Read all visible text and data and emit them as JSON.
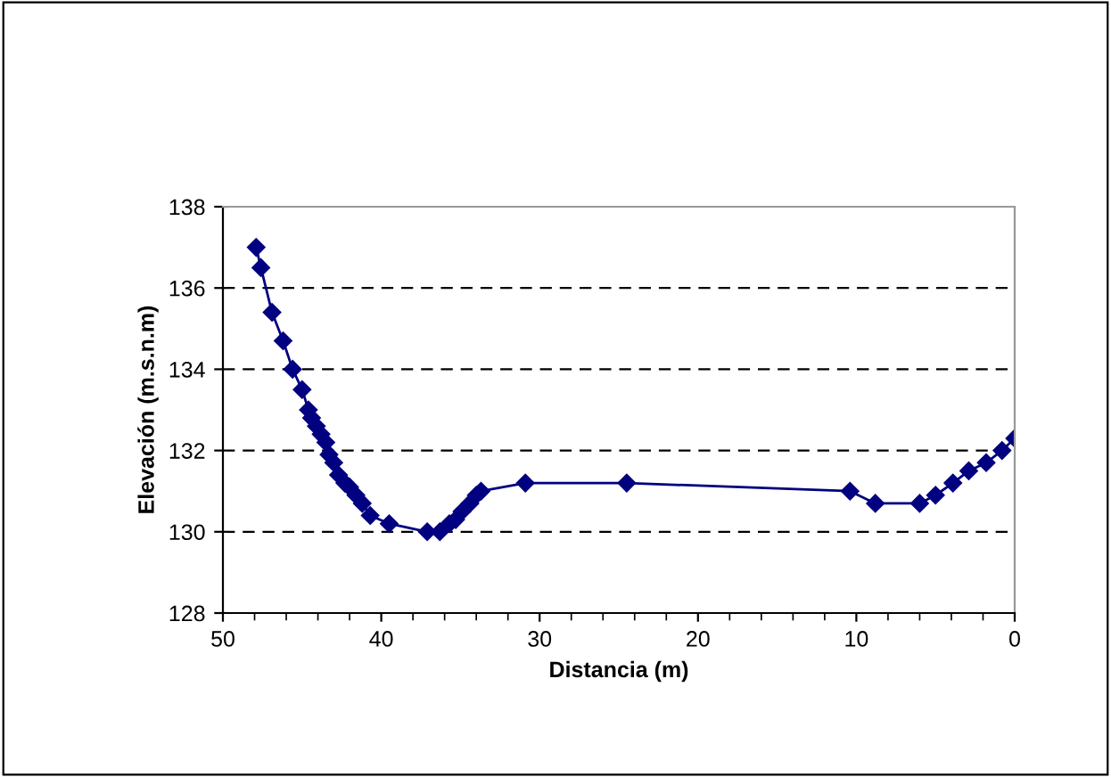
{
  "chart_data": {
    "type": "line",
    "xlabel": "Distancia (m)",
    "ylabel": "Elevación (m.s.n.m)",
    "x": [
      47.9,
      47.6,
      46.9,
      46.2,
      45.6,
      45.0,
      44.6,
      44.4,
      44.1,
      43.8,
      43.5,
      43.3,
      43.0,
      42.7,
      42.3,
      42.0,
      41.6,
      41.2,
      40.7,
      39.5,
      37.1,
      36.3,
      35.7,
      35.3,
      34.9,
      34.4,
      34.0,
      33.7,
      30.9,
      24.5,
      10.4,
      8.8,
      6.0,
      5.0,
      3.9,
      2.9,
      1.8,
      0.8,
      0.0
    ],
    "series": [
      {
        "color": "#000080",
        "values": [
          137.0,
          136.5,
          135.4,
          134.7,
          134.0,
          133.5,
          133.0,
          132.8,
          132.6,
          132.4,
          132.2,
          131.9,
          131.7,
          131.4,
          131.2,
          131.1,
          130.9,
          130.7,
          130.4,
          130.2,
          130.0,
          130.0,
          130.2,
          130.3,
          130.5,
          130.7,
          130.9,
          131.0,
          131.2,
          131.2,
          131.0,
          130.7,
          130.7,
          130.9,
          131.2,
          131.5,
          131.7,
          132.0,
          132.3
        ]
      }
    ],
    "xlim": [
      50,
      0
    ],
    "xticks": [
      50,
      40,
      30,
      20,
      10,
      0
    ],
    "ylim": [
      128,
      138
    ],
    "yticks": [
      128,
      130,
      132,
      134,
      136,
      138
    ],
    "grid": "y",
    "marker": "diamond",
    "line_style": "solid",
    "legend": false
  }
}
